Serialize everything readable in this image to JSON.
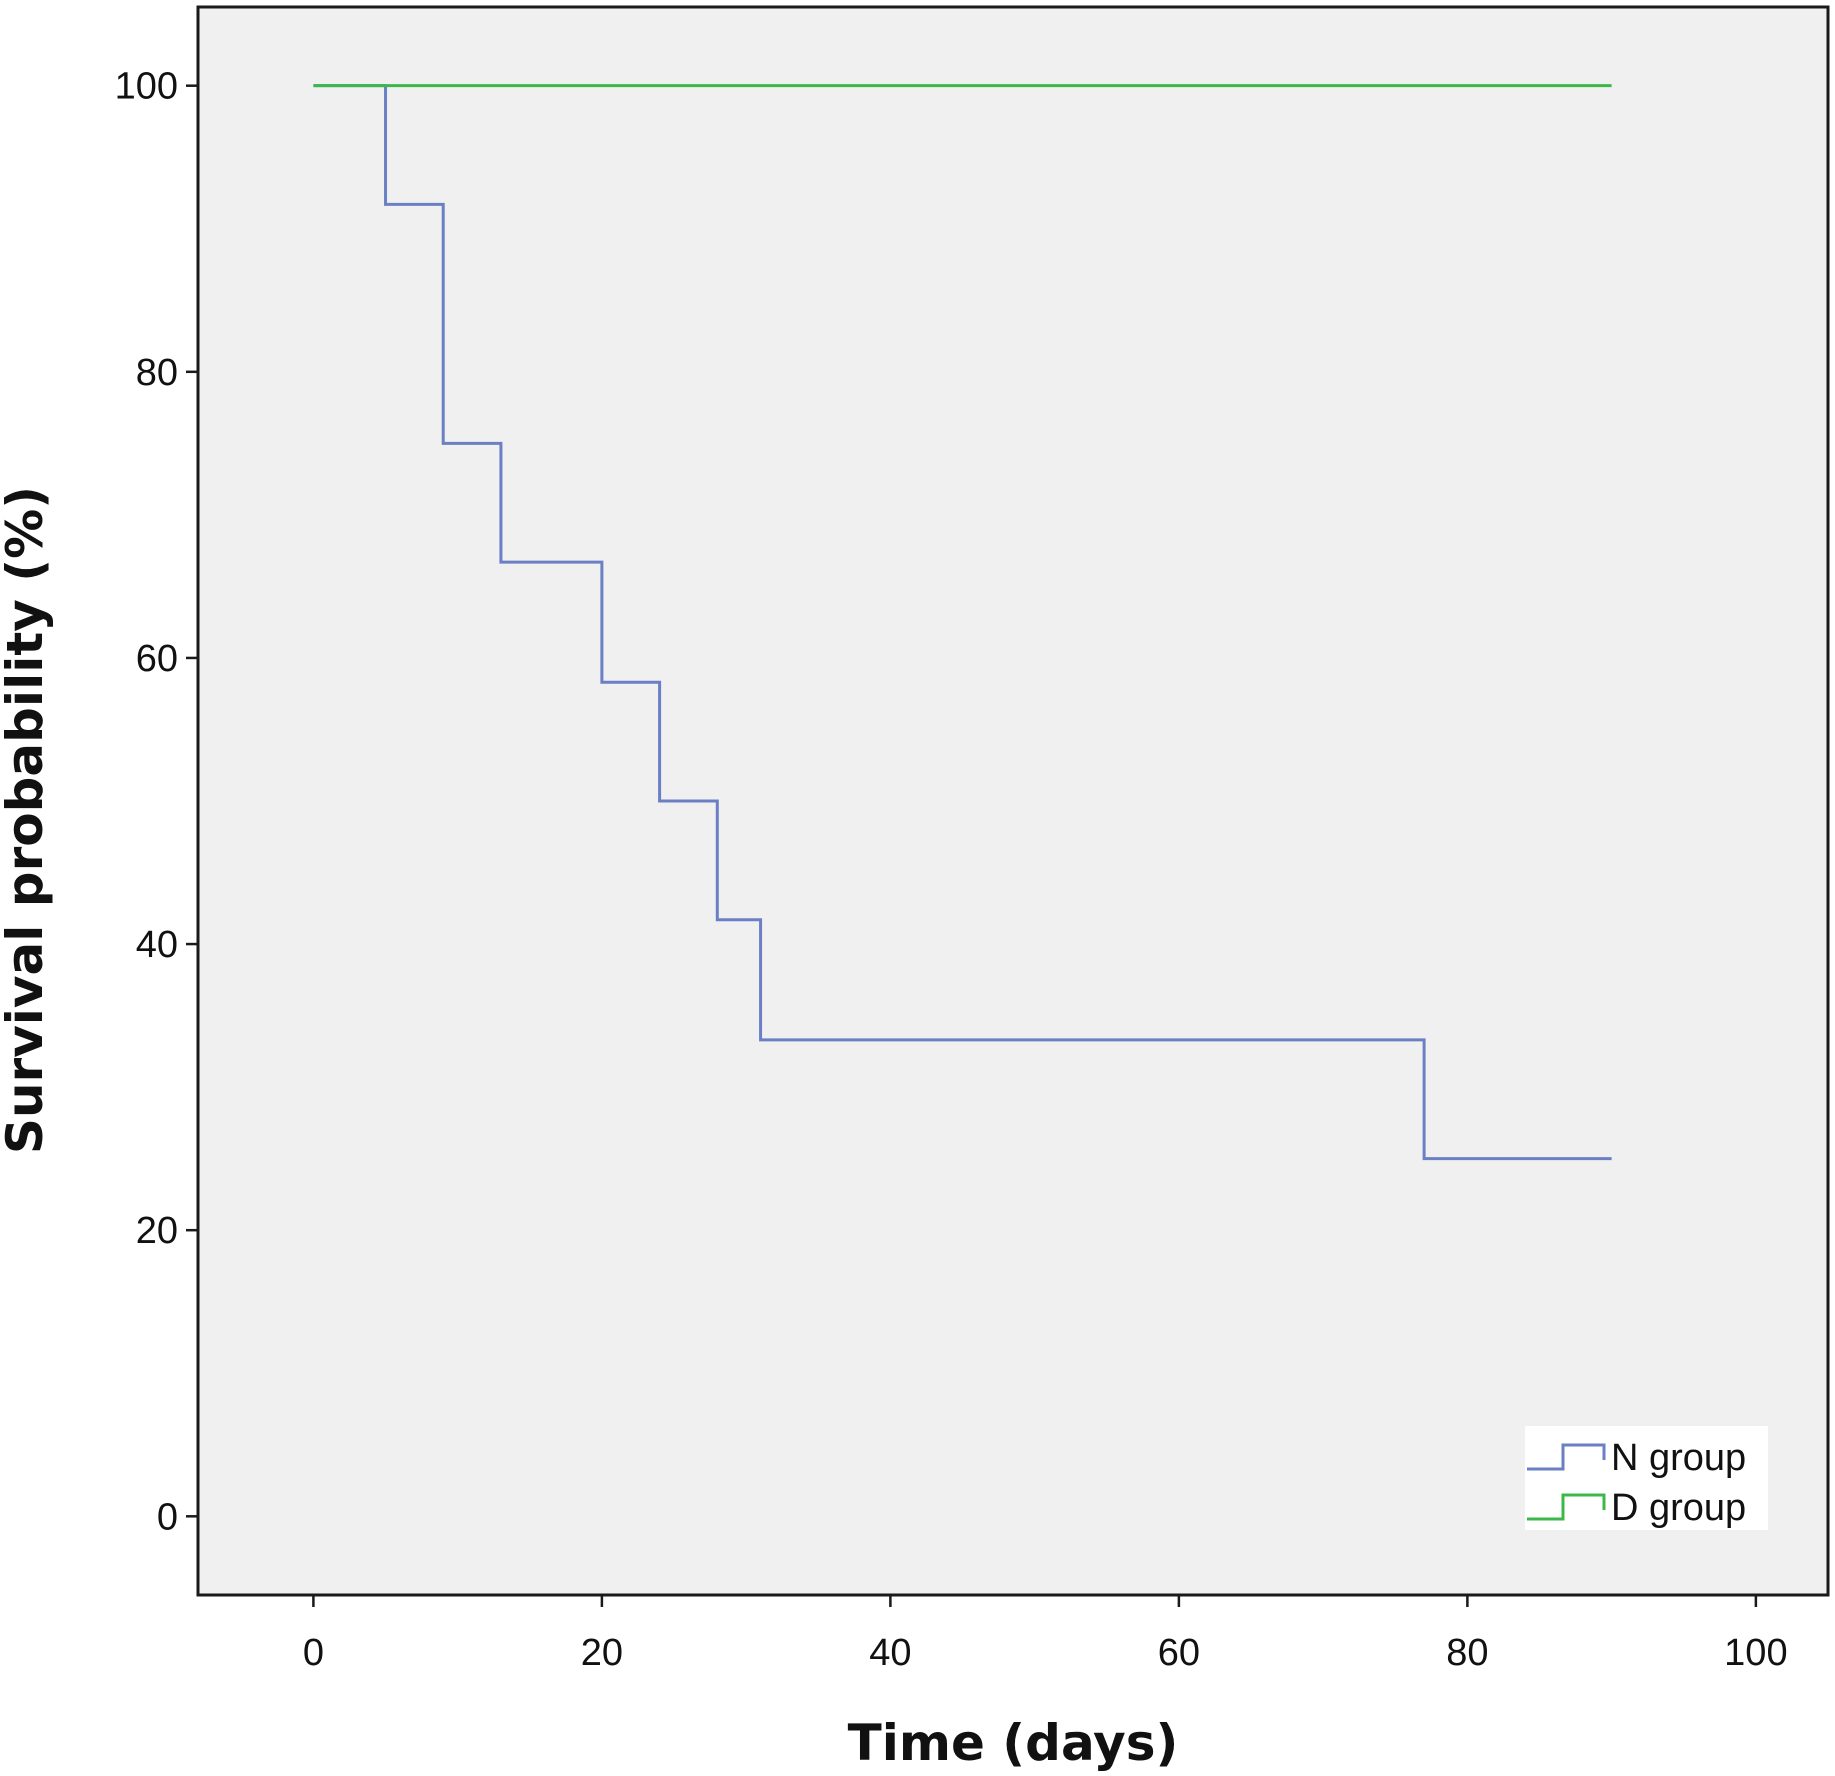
{
  "chart_data": {
    "type": "line",
    "subtype": "kaplan-meier step",
    "title": "",
    "xlabel": "Time (days)",
    "ylabel": "Survival probability (%)",
    "xlim": [
      -8,
      105
    ],
    "ylim": [
      -5.5,
      105.5
    ],
    "xticks": [
      0,
      20,
      40,
      60,
      80,
      100
    ],
    "yticks": [
      0,
      20,
      40,
      60,
      80,
      100
    ],
    "grid": false,
    "background": "#f0f0f0",
    "legend_position": "bottom-right",
    "series": [
      {
        "name": "N group",
        "color": "#6b7fc4",
        "step": true,
        "points": [
          [
            0,
            100
          ],
          [
            5,
            91.7
          ],
          [
            9,
            75
          ],
          [
            13,
            66.7
          ],
          [
            20,
            58.3
          ],
          [
            24,
            50
          ],
          [
            28,
            41.7
          ],
          [
            31,
            33.3
          ],
          [
            77,
            25
          ],
          [
            90,
            25
          ]
        ]
      },
      {
        "name": "D group",
        "color": "#3cb84a",
        "step": true,
        "points": [
          [
            0,
            100
          ],
          [
            90,
            100
          ]
        ]
      }
    ]
  }
}
